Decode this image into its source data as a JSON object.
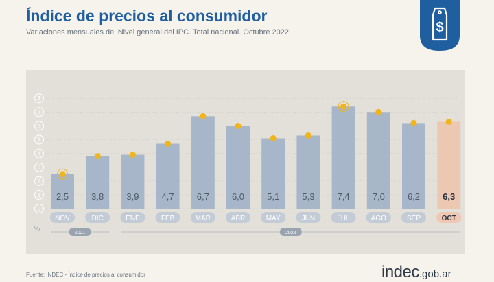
{
  "header": {
    "title": "Índice de precios al consumidor",
    "subtitle": "Variaciones mensuales del Nivel general del IPC. Total nacional. Octubre 2022"
  },
  "badge": {
    "icon": "price-tag-dollar-icon",
    "color": "#1f5fa0"
  },
  "footer": {
    "source": "Fuente: INDEC - Índice de precios al consumidor",
    "logo_main": "indec",
    "logo_suffix": ".gob.ar"
  },
  "colors": {
    "bar": "#a7b6c9",
    "bar_highlight": "#ecc8b3",
    "dot": "#f0b41c",
    "label": "#4f5b69",
    "label_highlight": "#2c3641",
    "pill": "#c3cbd6",
    "pill_highlight": "#efc7b3",
    "panel": "#e3e0d9"
  },
  "chart_data": {
    "type": "bar",
    "categories": [
      "NOV",
      "DIC",
      "ENE",
      "FEB",
      "MAR",
      "ABR",
      "MAY",
      "JUN",
      "JUL",
      "AGO",
      "SEP",
      "OCT"
    ],
    "values": [
      2.5,
      3.8,
      3.9,
      4.7,
      6.7,
      6.0,
      5.1,
      5.3,
      7.4,
      7.0,
      6.2,
      6.3
    ],
    "value_labels": [
      "2,5",
      "3,8",
      "3,9",
      "4,7",
      "6,7",
      "6,0",
      "5,1",
      "5,3",
      "7,4",
      "7,0",
      "6,2",
      "6,3"
    ],
    "highlight_index": 11,
    "ring_indices": [
      0,
      8
    ],
    "ylim": [
      0,
      8
    ],
    "yticks": [
      0,
      1,
      2,
      3,
      4,
      5,
      6,
      7,
      8
    ],
    "yunit": "%",
    "years": [
      {
        "label": "2021",
        "start": 0,
        "end": 1
      },
      {
        "label": "2022",
        "start": 2,
        "end": 11
      }
    ],
    "grid": true
  }
}
